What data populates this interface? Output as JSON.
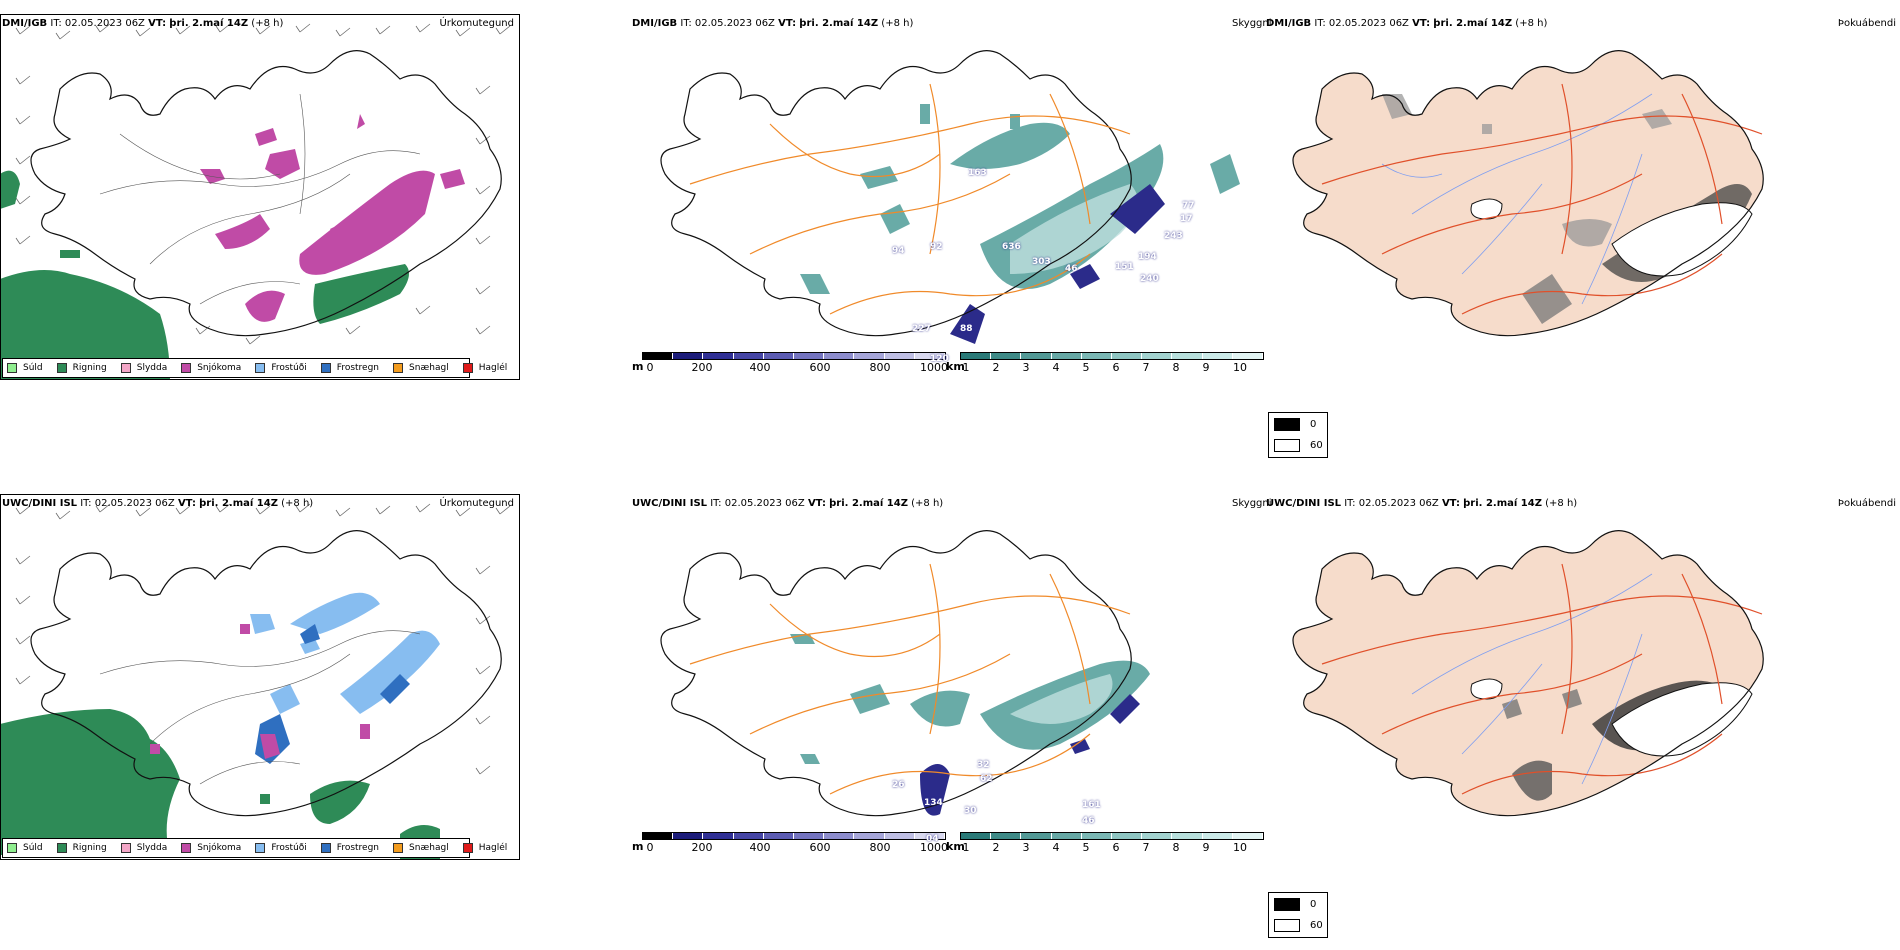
{
  "rows": [
    {
      "model": "DMI/IGB",
      "it_label": "IT:",
      "it_value": "02.05.2023 06Z",
      "vt_label": "VT:",
      "vt_value": "þri. 2.maí 14Z",
      "lead": "(+8 h)"
    },
    {
      "model": "UWC/DINI ISL",
      "it_label": "IT:",
      "it_value": "02.05.2023 06Z",
      "vt_label": "VT:",
      "vt_value": "þri. 2.maí 14Z",
      "lead": "(+8 h)"
    }
  ],
  "titles": {
    "precip_type": "Úrkomutegund",
    "visibility": "Skyggni",
    "fog": "Þokuábendi"
  },
  "precip_legend": [
    {
      "label": "Súld",
      "color": "#90EE90"
    },
    {
      "label": "Rigning",
      "color": "#2E8B57"
    },
    {
      "label": "Slydda",
      "color": "#F4A7C8"
    },
    {
      "label": "Snjókoma",
      "color": "#C04BA6"
    },
    {
      "label": "Frostúði",
      "color": "#87BDF0"
    },
    {
      "label": "Frostregn",
      "color": "#2F6FC0"
    },
    {
      "label": "Snæhagl",
      "color": "#F39C1F"
    },
    {
      "label": "Haglél",
      "color": "#E01B1B"
    }
  ],
  "elevation_scale": {
    "unit": "m",
    "ticks": [
      "0",
      "200",
      "400",
      "600",
      "800",
      "1000"
    ],
    "colors": [
      "#000000",
      "#1c1c7a",
      "#2f2f95",
      "#4545a5",
      "#5c5cb3",
      "#7474c0",
      "#8d8dcd",
      "#a6a6d9",
      "#bfbfe4",
      "#d9d9ef"
    ]
  },
  "visibility_scale": {
    "unit": "km",
    "ticks": [
      "1",
      "2",
      "3",
      "4",
      "5",
      "6",
      "7",
      "8",
      "9",
      "10"
    ],
    "colors": [
      "#2a7a78",
      "#3e8a87",
      "#529996",
      "#66a8a5",
      "#7ab7b4",
      "#8ec5c2",
      "#a2d2cf",
      "#b7dfdc",
      "#cbeae8",
      "#e2f4f3"
    ]
  },
  "cloud_key": [
    {
      "label": "0",
      "color": "#000000"
    },
    {
      "label": "60",
      "color": "#ffffff"
    }
  ],
  "visibility_labels_top": [
    "163",
    "92",
    "94",
    "636",
    "303",
    "46",
    "243",
    "194",
    "151",
    "240",
    "77",
    "17",
    "227",
    "88",
    "120"
  ],
  "visibility_labels_bottom": [
    "32",
    "26",
    "30",
    "161",
    "46",
    "134",
    "04",
    "62"
  ],
  "colors": {
    "rain": "#2E8B57",
    "snow": "#C04BA6",
    "freezing_drizzle": "#87BDF0",
    "freezing_rain": "#2F6FC0",
    "vis_teal": "#4f9c98",
    "vis_dark": "#2b2b8a",
    "roads": "#f08a2a",
    "land_fog": "#f6dccb",
    "fog_roads": "#e0502a",
    "rivers": "#7f9ef0"
  }
}
